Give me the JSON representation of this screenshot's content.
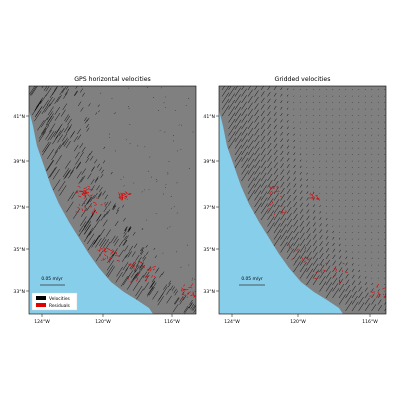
{
  "chart_data": [
    {
      "type": "map",
      "title": "GPS horizontal velocities",
      "x_ticks": [
        "124°W",
        "120°W",
        "116°W"
      ],
      "y_ticks": [
        "41°N",
        "39°N",
        "37°N",
        "35°N",
        "33°N"
      ],
      "lon_range": [
        -124.7,
        -114.9
      ],
      "lat_range": [
        32.3,
        42.6
      ],
      "scale_label": "0.05 m/yr",
      "legend": [
        {
          "label": "Velocities",
          "color": "#000000"
        },
        {
          "label": "Residuals",
          "color": "#e00000"
        }
      ],
      "colors": {
        "land": "#808080",
        "ocean": "#87ceeb"
      }
    },
    {
      "type": "map",
      "title": "Gridded velocities",
      "x_ticks": [
        "124°W",
        "120°W",
        "116°W"
      ],
      "y_ticks": [
        "41°N",
        "39°N",
        "37°N",
        "35°N",
        "33°N"
      ],
      "lon_range": [
        -124.7,
        -114.9
      ],
      "lat_range": [
        32.3,
        42.6
      ],
      "scale_label": "0.05 m/yr",
      "colors": {
        "land": "#808080",
        "ocean": "#87ceeb"
      }
    }
  ]
}
